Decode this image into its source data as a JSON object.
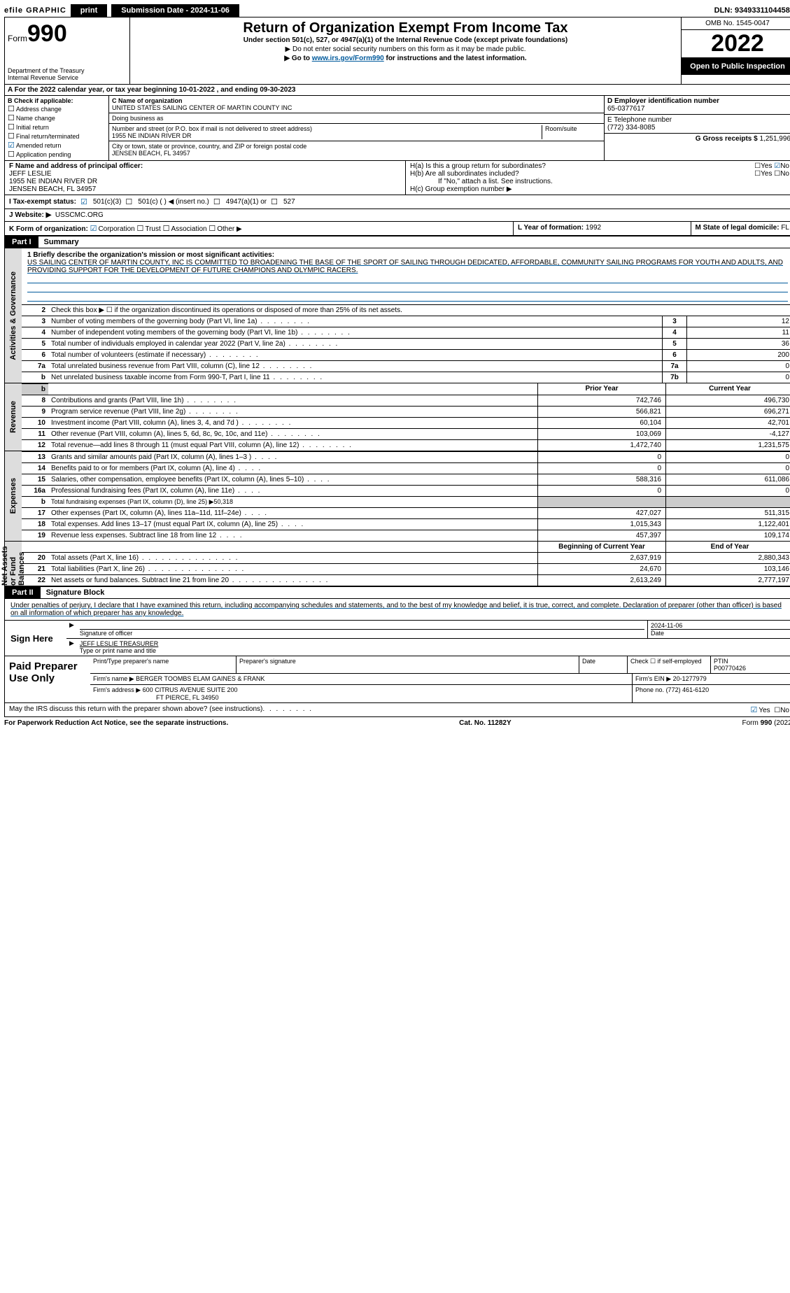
{
  "colors": {
    "link": "#005a9c",
    "shade": "#cccccc",
    "tab": "#dddddd"
  },
  "topbar": {
    "efile": "efile GRAPHIC",
    "print": "print",
    "submission": "Submission Date - 2024-11-06",
    "dln": "DLN: 93493311044584"
  },
  "header": {
    "form_word": "Form",
    "form_num": "990",
    "dept": "Department of the Treasury",
    "irs": "Internal Revenue Service",
    "title": "Return of Organization Exempt From Income Tax",
    "subtitle": "Under section 501(c), 527, or 4947(a)(1) of the Internal Revenue Code (except private foundations)",
    "ssn_note": "▶ Do not enter social security numbers on this form as it may be made public.",
    "goto_pre": "▶ Go to ",
    "goto_link": "www.irs.gov/Form990",
    "goto_post": " for instructions and the latest information.",
    "omb": "OMB No. 1545-0047",
    "year": "2022",
    "open": "Open to Public Inspection"
  },
  "period": {
    "text": "A For the 2022 calendar year, or tax year beginning 10-01-2022    , and ending 09-30-2023"
  },
  "B": {
    "label": "B Check if applicable:",
    "addr": "Address change",
    "name": "Name change",
    "initial": "Initial return",
    "final": "Final return/terminated",
    "amended": "Amended return",
    "app": "Application pending"
  },
  "C": {
    "name_lbl": "C Name of organization",
    "name": "UNITED STATES SAILING CENTER OF MARTIN COUNTY INC",
    "dba_lbl": "Doing business as",
    "street_lbl": "Number and street (or P.O. box if mail is not delivered to street address)",
    "room_lbl": "Room/suite",
    "street": "1955 NE INDIAN RIVER DR",
    "city_lbl": "City or town, state or province, country, and ZIP or foreign postal code",
    "city": "JENSEN BEACH, FL  34957"
  },
  "D": {
    "lbl": "D Employer identification number",
    "val": "65-0377617"
  },
  "E": {
    "lbl": "E Telephone number",
    "val": "(772) 334-8085"
  },
  "G": {
    "lbl": "G Gross receipts $",
    "val": "1,251,996"
  },
  "F": {
    "lbl": "F  Name and address of principal officer:",
    "name": "JEFF LESLIE",
    "addr1": "1955 NE INDIAN RIVER DR",
    "addr2": "JENSEN BEACH, FL  34957"
  },
  "H": {
    "a": "H(a)  Is this a group return for subordinates?",
    "b": "H(b)  Are all subordinates included?",
    "b_note": "If \"No,\" attach a list. See instructions.",
    "c": "H(c)  Group exemption number ▶",
    "yes": "Yes",
    "no": "No"
  },
  "I": {
    "lbl": "I   Tax-exempt status:",
    "c3": "501(c)(3)",
    "c": "501(c) (   ) ◀ (insert no.)",
    "a1": "4947(a)(1) or",
    "s527": "527"
  },
  "J": {
    "lbl": "J   Website: ▶",
    "val": "USSCMC.ORG"
  },
  "K": {
    "lbl": "K Form of organization:",
    "corp": "Corporation",
    "trust": "Trust",
    "assoc": "Association",
    "other": "Other ▶"
  },
  "L": {
    "lbl": "L Year of formation:",
    "val": "1992"
  },
  "M": {
    "lbl": "M State of legal domicile:",
    "val": "FL"
  },
  "part1": {
    "bar": "Part I",
    "title": "Summary"
  },
  "tabs": {
    "gov": "Activities & Governance",
    "rev": "Revenue",
    "exp": "Expenses",
    "net": "Net Assets or Fund Balances"
  },
  "mission": {
    "lbl": "1  Briefly describe the organization's mission or most significant activities:",
    "text": "US SAILING CENTER OF MARTIN COUNTY, INC IS COMMITTED TO BROADENING THE BASE OF THE SPORT OF SAILING THROUGH DEDICATED, AFFORDABLE, COMMUNITY SAILING PROGRAMS FOR YOUTH AND ADULTS, AND PROVIDING SUPPORT FOR THE DEVELOPMENT OF FUTURE CHAMPIONS AND OLYMPIC RACERS."
  },
  "line2": "Check this box ▶ ☐  if the organization discontinued its operations or disposed of more than 25% of its net assets.",
  "gov_rows": [
    {
      "n": "3",
      "t": "Number of voting members of the governing body (Part VI, line 1a)",
      "c": "3",
      "v": "12"
    },
    {
      "n": "4",
      "t": "Number of independent voting members of the governing body (Part VI, line 1b)",
      "c": "4",
      "v": "11"
    },
    {
      "n": "5",
      "t": "Total number of individuals employed in calendar year 2022 (Part V, line 2a)",
      "c": "5",
      "v": "36"
    },
    {
      "n": "6",
      "t": "Total number of volunteers (estimate if necessary)",
      "c": "6",
      "v": "200"
    },
    {
      "n": "7a",
      "t": "Total unrelated business revenue from Part VIII, column (C), line 12",
      "c": "7a",
      "v": "0"
    },
    {
      "n": "b",
      "t": "Net unrelated business taxable income from Form 990-T, Part I, line 11",
      "c": "7b",
      "v": "0"
    }
  ],
  "col_heads": {
    "prior": "Prior Year",
    "current": "Current Year",
    "begin": "Beginning of Current Year",
    "end": "End of Year"
  },
  "rev_rows": [
    {
      "n": "8",
      "t": "Contributions and grants (Part VIII, line 1h)",
      "p": "742,746",
      "c": "496,730"
    },
    {
      "n": "9",
      "t": "Program service revenue (Part VIII, line 2g)",
      "p": "566,821",
      "c": "696,271"
    },
    {
      "n": "10",
      "t": "Investment income (Part VIII, column (A), lines 3, 4, and 7d )",
      "p": "60,104",
      "c": "42,701"
    },
    {
      "n": "11",
      "t": "Other revenue (Part VIII, column (A), lines 5, 6d, 8c, 9c, 10c, and 11e)",
      "p": "103,069",
      "c": "-4,127"
    },
    {
      "n": "12",
      "t": "Total revenue—add lines 8 through 11 (must equal Part VIII, column (A), line 12)",
      "p": "1,472,740",
      "c": "1,231,575"
    }
  ],
  "exp_rows": [
    {
      "n": "13",
      "t": "Grants and similar amounts paid (Part IX, column (A), lines 1–3 )",
      "p": "0",
      "c": "0"
    },
    {
      "n": "14",
      "t": "Benefits paid to or for members (Part IX, column (A), line 4)",
      "p": "0",
      "c": "0"
    },
    {
      "n": "15",
      "t": "Salaries, other compensation, employee benefits (Part IX, column (A), lines 5–10)",
      "p": "588,316",
      "c": "611,086"
    },
    {
      "n": "16a",
      "t": "Professional fundraising fees (Part IX, column (A), line 11e)",
      "p": "0",
      "c": "0"
    }
  ],
  "exp_b": {
    "n": "b",
    "t": "Total fundraising expenses (Part IX, column (D), line 25) ▶50,318"
  },
  "exp_rows2": [
    {
      "n": "17",
      "t": "Other expenses (Part IX, column (A), lines 11a–11d, 11f–24e)",
      "p": "427,027",
      "c": "511,315"
    },
    {
      "n": "18",
      "t": "Total expenses. Add lines 13–17 (must equal Part IX, column (A), line 25)",
      "p": "1,015,343",
      "c": "1,122,401"
    },
    {
      "n": "19",
      "t": "Revenue less expenses. Subtract line 18 from line 12",
      "p": "457,397",
      "c": "109,174"
    }
  ],
  "net_rows": [
    {
      "n": "20",
      "t": "Total assets (Part X, line 16)",
      "p": "2,637,919",
      "c": "2,880,343"
    },
    {
      "n": "21",
      "t": "Total liabilities (Part X, line 26)",
      "p": "24,670",
      "c": "103,146"
    },
    {
      "n": "22",
      "t": "Net assets or fund balances. Subtract line 21 from line 20",
      "p": "2,613,249",
      "c": "2,777,197"
    }
  ],
  "part2": {
    "bar": "Part II",
    "title": "Signature Block"
  },
  "penalty": "Under penalties of perjury, I declare that I have examined this return, including accompanying schedules and statements, and to the best of my knowledge and belief, it is true, correct, and complete. Declaration of preparer (other than officer) is based on all information of which preparer has any knowledge.",
  "sign": {
    "here": "Sign Here",
    "sig_lbl": "Signature of officer",
    "date_lbl": "Date",
    "date": "2024-11-06",
    "name": "JEFF LESLIE  TREASURER",
    "name_lbl": "Type or print name and title"
  },
  "paid": {
    "lbl": "Paid Preparer Use Only",
    "prep_name_lbl": "Print/Type preparer's name",
    "prep_sig_lbl": "Preparer's signature",
    "date_lbl": "Date",
    "self_lbl": "Check ☐ if self-employed",
    "ptin_lbl": "PTIN",
    "ptin": "P00770426",
    "firm_name_lbl": "Firm's name    ▶",
    "firm_name": "BERGER TOOMBS ELAM GAINES & FRANK",
    "firm_ein_lbl": "Firm's EIN ▶",
    "firm_ein": "20-1277979",
    "firm_addr_lbl": "Firm's address ▶",
    "firm_addr1": "600 CITRUS AVENUE SUITE 200",
    "firm_addr2": "FT PIERCE, FL  34950",
    "phone_lbl": "Phone no.",
    "phone": "(772) 461-6120"
  },
  "discuss": {
    "q": "May the IRS discuss this return with the preparer shown above? (see instructions)",
    "yes": "Yes",
    "no": "No"
  },
  "footer": {
    "pra": "For Paperwork Reduction Act Notice, see the separate instructions.",
    "cat": "Cat. No. 11282Y",
    "form": "Form 990 (2022)"
  }
}
